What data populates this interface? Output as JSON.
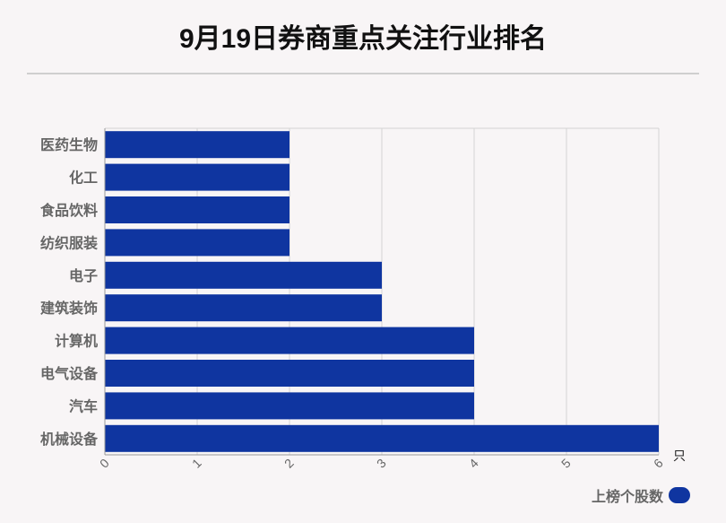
{
  "title": "9月19日券商重点关注行业排名",
  "legend": {
    "label": "上榜个股数"
  },
  "colors": {
    "bar": "#0f35a0",
    "grid": "#d4d4d4",
    "axis": "#999999",
    "label": "#666666"
  },
  "chart_data": {
    "type": "bar",
    "orientation": "horizontal",
    "title": "9月19日券商重点关注行业排名",
    "categories": [
      "医药生物",
      "化工",
      "食品饮料",
      "纺织服装",
      "电子",
      "建筑装饰",
      "计算机",
      "电气设备",
      "汽车",
      "机械设备"
    ],
    "series": [
      {
        "name": "上榜个股数",
        "values": [
          2,
          2,
          2,
          2,
          3,
          3,
          4,
          4,
          4,
          6
        ]
      }
    ],
    "xlim": [
      0,
      6
    ],
    "xticks": [
      "0",
      "1",
      "2",
      "3",
      "4",
      "5",
      "6"
    ],
    "xunit": "只",
    "grid": true,
    "legend_position": "bottom-right"
  }
}
